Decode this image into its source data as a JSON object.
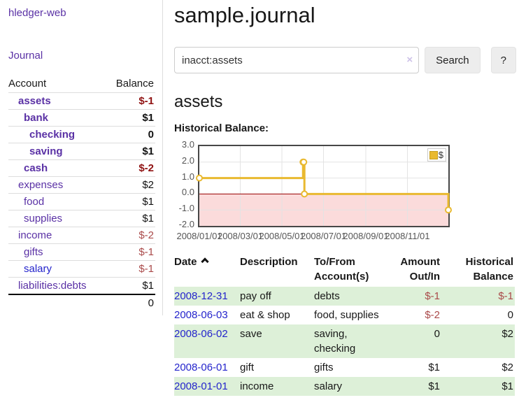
{
  "colors": {
    "link_purple": "#5a31a5",
    "link_blue": "#2424cc",
    "negative_strong": "#8f1111",
    "negative": "#aa4a4a",
    "row_highlight_green": "#ddf0d8",
    "chart_series_gold": "#e9b930",
    "chart_negative_region_pink": "#fbdbdb",
    "chart_zero_line_red": "#990000"
  },
  "sidebar": {
    "brand": "hledger-web",
    "journal_link": "Journal",
    "columns": {
      "account": "Account",
      "balance": "Balance"
    },
    "accounts": [
      {
        "name": "assets",
        "depth": 1,
        "emphasis": true,
        "balance": "$-1",
        "negative": true
      },
      {
        "name": "bank",
        "depth": 2,
        "emphasis": true,
        "balance": "$1",
        "negative": false
      },
      {
        "name": "checking",
        "depth": 3,
        "emphasis": true,
        "balance": "0",
        "negative": false
      },
      {
        "name": "saving",
        "depth": 3,
        "emphasis": true,
        "balance": "$1",
        "negative": false
      },
      {
        "name": "cash",
        "depth": 2,
        "emphasis": true,
        "balance": "$-2",
        "negative": true
      },
      {
        "name": "expenses",
        "depth": 1,
        "emphasis": false,
        "balance": "$2",
        "negative": false
      },
      {
        "name": "food",
        "depth": 2,
        "emphasis": false,
        "balance": "$1",
        "negative": false
      },
      {
        "name": "supplies",
        "depth": 2,
        "emphasis": false,
        "balance": "$1",
        "negative": false
      },
      {
        "name": "income",
        "depth": 1,
        "emphasis": false,
        "balance": "$-2",
        "negative": true
      },
      {
        "name": "gifts",
        "depth": 2,
        "emphasis": false,
        "balance": "$-1",
        "negative": true
      },
      {
        "name": "salary",
        "depth": 2,
        "emphasis": false,
        "balance": "$-1",
        "negative": true,
        "unvisited": true
      },
      {
        "name": "liabilities:debts",
        "depth": 1,
        "emphasis": false,
        "balance": "$1",
        "negative": false
      }
    ],
    "total": "0"
  },
  "main": {
    "title": "sample.journal",
    "search": {
      "value": "inacct:assets",
      "clear_icon": "×",
      "search_button": "Search",
      "help_button": "?"
    },
    "account_heading": "assets",
    "section_label": "Historical Balance:"
  },
  "chart_data": {
    "type": "line",
    "step": true,
    "title": "Historical Balance",
    "legend": [
      {
        "label": "$",
        "color": "#e9b930"
      }
    ],
    "legend_position": "top-right",
    "x": [
      "2008-01-01",
      "2008-06-01",
      "2008-06-02",
      "2008-06-03",
      "2008-12-31"
    ],
    "y": [
      1,
      2,
      2,
      0,
      -1
    ],
    "xlim": [
      "2008-01-01",
      "2008-12-31"
    ],
    "ylim": [
      -2,
      3
    ],
    "x_tick_labels": [
      "2008/01/01",
      "2008/03/01",
      "2008/05/01",
      "2008/07/01",
      "2008/09/01",
      "2008/11/01"
    ],
    "y_ticks": [
      3,
      2,
      1,
      0,
      -1,
      -2
    ],
    "y_tick_labels": [
      "3.0",
      "2.0",
      "1.0",
      "0.0",
      "-1.0",
      "-2.0"
    ],
    "grid": true,
    "negative_region_fill": true
  },
  "register": {
    "headers": {
      "date": "Date",
      "description": "Description",
      "accounts": "To/From Account(s)",
      "amount": "Amount Out/In",
      "balance": "Historical Balance"
    },
    "sort_icon": "chevron-up",
    "rows": [
      {
        "date": "2008-12-31",
        "description": "pay off",
        "accounts": "debts",
        "amount": "$-1",
        "amount_negative": true,
        "balance": "$-1",
        "balance_negative": true,
        "highlight": true
      },
      {
        "date": "2008-06-03",
        "description": "eat & shop",
        "accounts": "food, supplies",
        "amount": "$-2",
        "amount_negative": true,
        "balance": "0",
        "balance_negative": false,
        "highlight": false
      },
      {
        "date": "2008-06-02",
        "description": "save",
        "accounts": "saving, checking",
        "amount": "0",
        "amount_negative": false,
        "balance": "$2",
        "balance_negative": false,
        "highlight": true
      },
      {
        "date": "2008-06-01",
        "description": "gift",
        "accounts": "gifts",
        "amount": "$1",
        "amount_negative": false,
        "balance": "$2",
        "balance_negative": false,
        "highlight": false
      },
      {
        "date": "2008-01-01",
        "description": "income",
        "accounts": "salary",
        "amount": "$1",
        "amount_negative": false,
        "balance": "$1",
        "balance_negative": false,
        "highlight": true
      }
    ]
  }
}
